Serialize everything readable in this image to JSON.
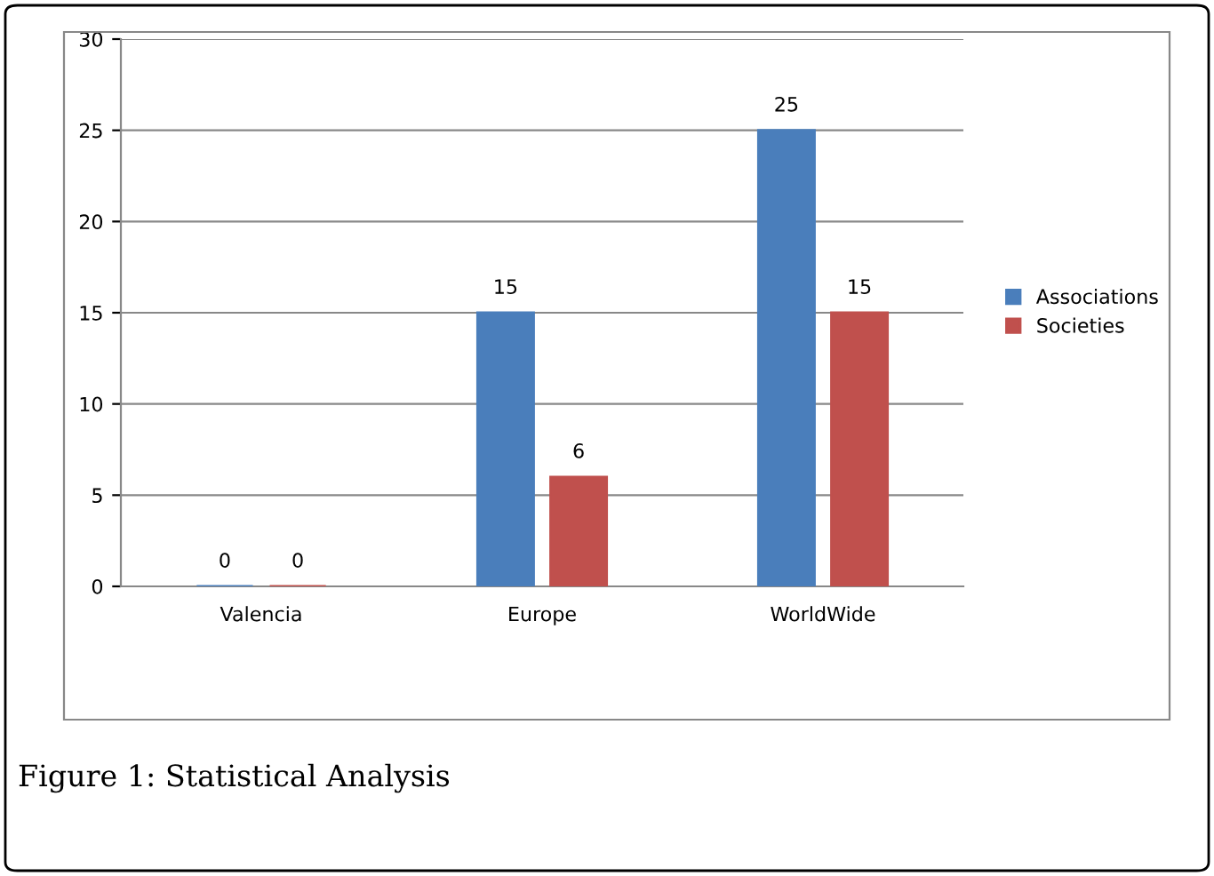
{
  "chart_data": {
    "type": "bar",
    "categories": [
      "Valencia",
      "Europe",
      "WorldWide"
    ],
    "series": [
      {
        "name": "Associations",
        "color": "#4a7ebb",
        "values": [
          0,
          15,
          25
        ]
      },
      {
        "name": "Societies",
        "color": "#c0504d",
        "values": [
          0,
          6,
          15
        ]
      }
    ],
    "ylim": [
      0,
      30
    ],
    "yticks": [
      0,
      5,
      10,
      15,
      20,
      25,
      30
    ],
    "grid": "y",
    "legend": "right",
    "data_labels": true,
    "annotations": [
      "Figure 1: Statistical Analysis"
    ]
  }
}
